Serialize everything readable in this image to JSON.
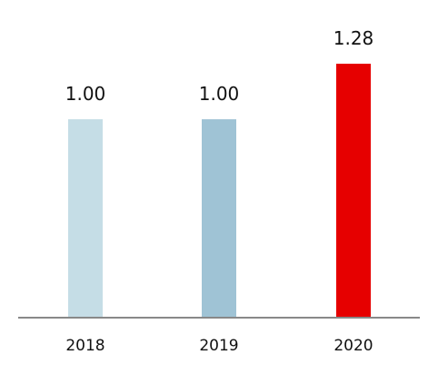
{
  "chart_data": {
    "type": "bar",
    "categories": [
      "2018",
      "2019",
      "2020"
    ],
    "values": [
      1.0,
      1.0,
      1.28
    ],
    "value_labels": [
      "1.00",
      "1.00",
      "1.28"
    ],
    "bar_colors": [
      "#c5dde6",
      "#9fc3d5",
      "#e60000"
    ],
    "axis_color": "#888888",
    "ylim": [
      0,
      1.28
    ],
    "title": "",
    "xlabel": "",
    "ylabel": "",
    "grid": false,
    "legend": "none"
  }
}
